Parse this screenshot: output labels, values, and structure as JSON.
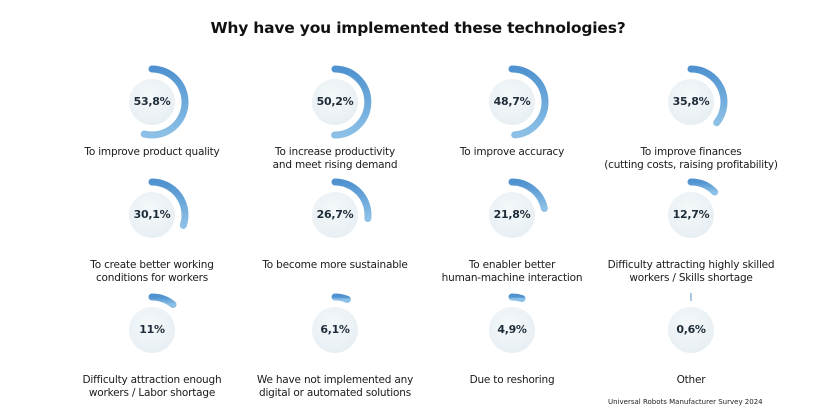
{
  "title": "Why have you implemented these technologies?",
  "source": "Universal Robots Manufacturer Survey 2024",
  "colors": {
    "arc_start": "#8cc0e6",
    "arc_end": "#4f92cf",
    "circle_fill": "#e8eff3",
    "value_text": "#1f2d3a"
  },
  "items": [
    {
      "value_label": "53,8%",
      "value": 53.8,
      "label": [
        "To improve product quality"
      ]
    },
    {
      "value_label": "50,2%",
      "value": 50.2,
      "label": [
        "To increase productivity",
        "and meet rising demand"
      ]
    },
    {
      "value_label": "48,7%",
      "value": 48.7,
      "label": [
        "To improve accuracy"
      ]
    },
    {
      "value_label": "35,8%",
      "value": 35.8,
      "label": [
        "To improve finances",
        "(cutting costs, raising profitability)"
      ]
    },
    {
      "value_label": "30,1%",
      "value": 30.1,
      "label": [
        "To create better working",
        "conditions for workers"
      ]
    },
    {
      "value_label": "26,7%",
      "value": 26.7,
      "label": [
        "To become more sustainable"
      ]
    },
    {
      "value_label": "21,8%",
      "value": 21.8,
      "label": [
        "To enabler better",
        "human-machine interaction"
      ]
    },
    {
      "value_label": "12,7%",
      "value": 12.7,
      "label": [
        "Difficulty attracting highly skilled",
        "workers / Skills shortage"
      ]
    },
    {
      "value_label": "11%",
      "value": 11,
      "label": [
        "Difficulty attraction enough",
        "workers / Labor shortage"
      ]
    },
    {
      "value_label": "6,1%",
      "value": 6.1,
      "label": [
        "We have not implemented any",
        "digital or automated solutions"
      ]
    },
    {
      "value_label": "4,9%",
      "value": 4.9,
      "label": [
        "Due to reshoring"
      ]
    },
    {
      "value_label": "0,6%",
      "value": 0.6,
      "label": [
        "Other"
      ]
    }
  ],
  "chart_data": {
    "type": "radial-bar",
    "title": "Why have you implemented these technologies?",
    "unit": "%",
    "categories": [
      "To improve product quality",
      "To increase productivity and meet rising demand",
      "To improve accuracy",
      "To improve finances (cutting costs, raising profitability)",
      "To create better working conditions for workers",
      "To become more sustainable",
      "To enabler better human-machine interaction",
      "Difficulty attracting highly skilled workers / Skills shortage",
      "Difficulty attraction enough workers / Labor shortage",
      "We have not implemented any digital or automated solutions",
      "Due to reshoring",
      "Other"
    ],
    "values": [
      53.8,
      50.2,
      48.7,
      35.8,
      30.1,
      26.7,
      21.8,
      12.7,
      11,
      6.1,
      4.9,
      0.6
    ],
    "source": "Universal Robots Manufacturer Survey 2024",
    "layout": "4x3 grid of circular progress gauges"
  }
}
